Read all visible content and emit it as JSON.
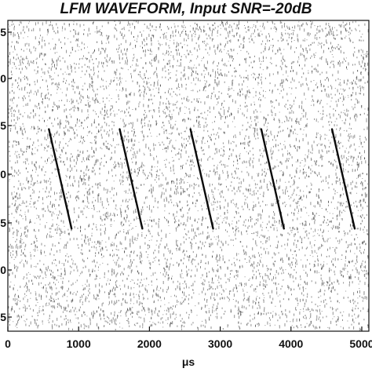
{
  "chart_data": {
    "type": "heatmap",
    "title": "LFM WAVEFORM, Input SNR=-20dB",
    "xlabel": "μs",
    "ylabel": "",
    "xlim": [
      0,
      5100
    ],
    "x_ticks": [
      0,
      1000,
      2000,
      3000,
      4000,
      5000
    ],
    "y_tick_labels": [
      "5",
      "0",
      "5",
      "0",
      "5",
      "0",
      "5"
    ],
    "grid": false,
    "colors": {
      "background": "#ffffff",
      "noise": "#6e6e6e",
      "signal": "#0a0a0a",
      "axis": "#111111"
    },
    "chirps": [
      {
        "start_us": 580,
        "end_us": 900
      },
      {
        "start_us": 1580,
        "end_us": 1900
      },
      {
        "start_us": 2580,
        "end_us": 2900
      },
      {
        "start_us": 3580,
        "end_us": 3900
      },
      {
        "start_us": 4580,
        "end_us": 4900
      }
    ]
  }
}
